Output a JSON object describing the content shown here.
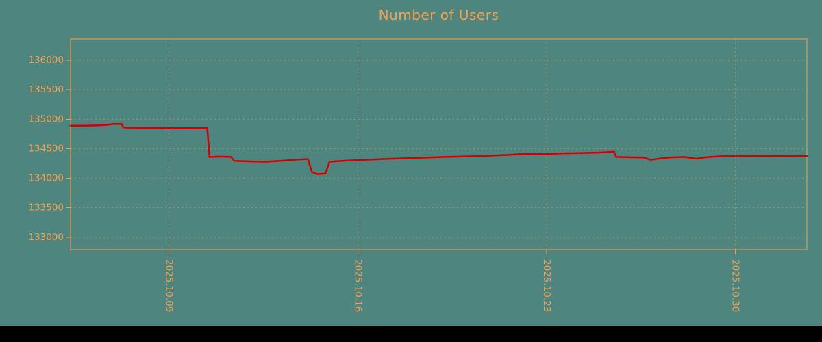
{
  "title": "Number of Users",
  "colors": {
    "background": "#4e857e",
    "accent": "#f6a04f",
    "line": "#d40000",
    "footer_bar": "#000000"
  },
  "chart_data": {
    "type": "line",
    "title": "Number of Users",
    "xlabel": "",
    "ylabel": "",
    "x_value_meaning": "day number in October 2025 (values > 31 spill into November)",
    "xlim": [
      5.35,
      32.65
    ],
    "ylim": [
      132790,
      136360
    ],
    "yticks": [
      133000,
      133500,
      134000,
      134500,
      135000,
      135500,
      136000
    ],
    "xticks": [
      {
        "value": 9,
        "label": "2025.10.09"
      },
      {
        "value": 16,
        "label": "2025.10.16"
      },
      {
        "value": 23,
        "label": "2025.10.23"
      },
      {
        "value": 30,
        "label": "2025.10.30"
      }
    ],
    "grid": true,
    "legend_position": "none",
    "series": [
      {
        "name": "Number of Users",
        "color": "#d40000",
        "points": [
          [
            5.35,
            134890
          ],
          [
            5.8,
            134890
          ],
          [
            6.3,
            134895
          ],
          [
            6.7,
            134905
          ],
          [
            6.95,
            134920
          ],
          [
            7.25,
            134920
          ],
          [
            7.3,
            134860
          ],
          [
            7.9,
            134855
          ],
          [
            8.5,
            134858
          ],
          [
            9.3,
            134850
          ],
          [
            10.42,
            134852
          ],
          [
            10.5,
            134360
          ],
          [
            10.9,
            134368
          ],
          [
            11.3,
            134362
          ],
          [
            11.42,
            134295
          ],
          [
            12.0,
            134285
          ],
          [
            12.55,
            134280
          ],
          [
            13.1,
            134295
          ],
          [
            13.7,
            134315
          ],
          [
            14.15,
            134325
          ],
          [
            14.3,
            134105
          ],
          [
            14.5,
            134070
          ],
          [
            14.8,
            134080
          ],
          [
            14.95,
            134280
          ],
          [
            15.4,
            134295
          ],
          [
            16.2,
            134312
          ],
          [
            17.2,
            134330
          ],
          [
            18.2,
            134345
          ],
          [
            19.2,
            134362
          ],
          [
            20.2,
            134372
          ],
          [
            21.0,
            134385
          ],
          [
            21.7,
            134400
          ],
          [
            22.2,
            134415
          ],
          [
            22.9,
            134408
          ],
          [
            23.5,
            134422
          ],
          [
            24.2,
            134428
          ],
          [
            24.9,
            134435
          ],
          [
            25.35,
            134445
          ],
          [
            25.5,
            134450
          ],
          [
            25.58,
            134362
          ],
          [
            26.1,
            134356
          ],
          [
            26.6,
            134352
          ],
          [
            26.85,
            134312
          ],
          [
            27.15,
            134332
          ],
          [
            27.5,
            134352
          ],
          [
            28.1,
            134362
          ],
          [
            28.55,
            134332
          ],
          [
            28.9,
            134356
          ],
          [
            29.4,
            134372
          ],
          [
            30.2,
            134380
          ],
          [
            31.2,
            134380
          ],
          [
            32.65,
            134376
          ]
        ]
      }
    ]
  }
}
